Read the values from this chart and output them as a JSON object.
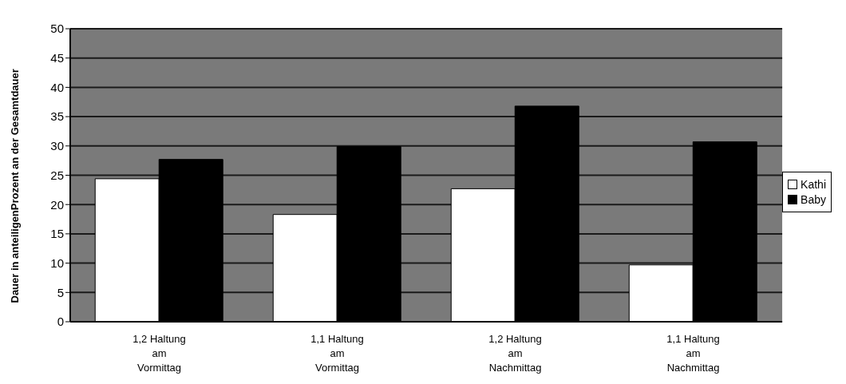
{
  "chart_data": {
    "type": "bar",
    "ylabel": "Dauer in anteiligenProzent an der Gesamtdauer",
    "categories": [
      "1,2 Haltung am Vormittag",
      "1,1 Haltung am Vormittag",
      "1,2 Haltung am Nachmittag",
      "1,1 Haltung am Nachmittag"
    ],
    "series": [
      {
        "name": "Kathi",
        "color": "#ffffff",
        "values": [
          24.4,
          18.3,
          22.7,
          9.7
        ]
      },
      {
        "name": "Baby",
        "color": "#000000",
        "values": [
          27.7,
          29.9,
          36.8,
          30.7
        ]
      }
    ],
    "ylim": [
      0,
      50
    ],
    "yticks": [
      0,
      5,
      10,
      15,
      20,
      25,
      30,
      35,
      40,
      45,
      50
    ],
    "grid": "y",
    "legend": "right"
  }
}
